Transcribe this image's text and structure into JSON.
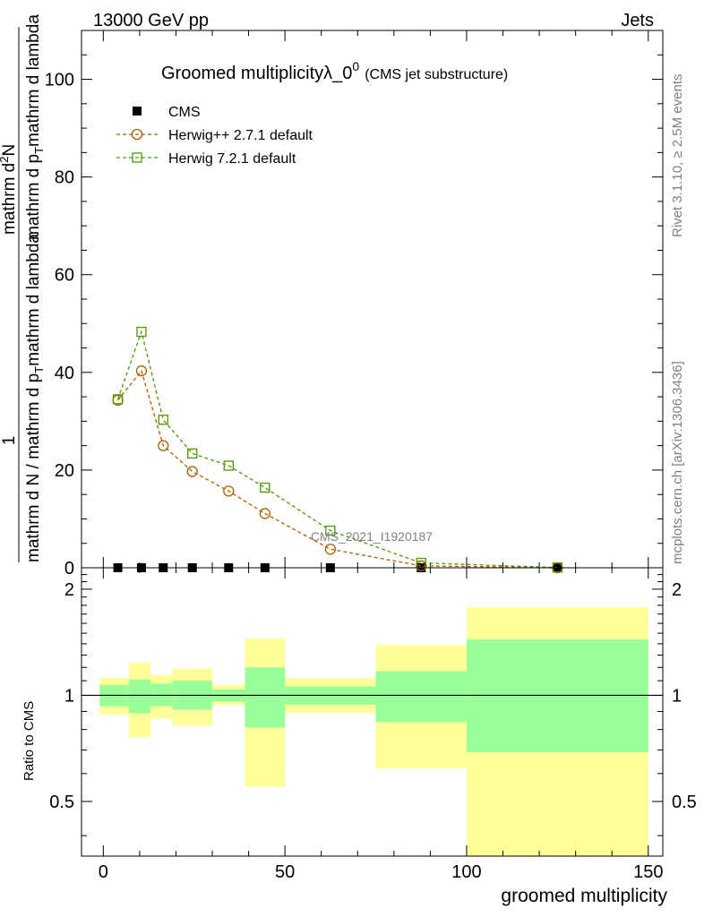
{
  "header": {
    "left": "13000 GeV pp",
    "right": "Jets"
  },
  "title": {
    "main": "Groomed multiplicityλ_0",
    "sup": "0",
    "sub": "(CMS jet substructure)"
  },
  "side_labels": {
    "rivet": "Rivet 3.1.10, ≥ 2.5M events",
    "mcplots": "mcplots.cern.ch [arXiv:1306.3436]"
  },
  "watermark": "CMS_2021_I1920187",
  "ylabel_main": {
    "numerator": "1",
    "denominator": "mathrm d N / mathrm d p",
    "denominator_sub": "T",
    "denominator_rest": "mathrm d lambda",
    "fraction_top": "mathrm d",
    "fraction_top_sup": "2",
    "fraction_top_rest": "N",
    "fraction_bottom": "mathrm d p",
    "fraction_bottom_sub": "T",
    "fraction_bottom_rest": "mathrm d lambda"
  },
  "ylabel_ratio": "Ratio to CMS",
  "xlabel": "groomed multiplicity",
  "chart_data": [
    {
      "type": "line",
      "panel": "main",
      "xlim": [
        -6,
        154
      ],
      "ylim": [
        0,
        110
      ],
      "y_ticks": [
        0,
        20,
        40,
        60,
        80,
        100
      ],
      "grid": false,
      "legend_position": "top-left",
      "series": [
        {
          "name": "CMS",
          "style": "markers",
          "marker": "filled-square",
          "color": "#000000",
          "x": [
            4,
            10.5,
            16.5,
            24.5,
            34.5,
            44.5,
            62.5,
            87.5,
            125
          ],
          "y": [
            0,
            0,
            0,
            0,
            0,
            0,
            0,
            0,
            0
          ]
        },
        {
          "name": "Herwig++ 2.7.1 default",
          "style": "dashed-line-markers",
          "marker": "open-circle",
          "color": "#b35900",
          "x": [
            4,
            10.5,
            16.5,
            24.5,
            34.5,
            44.5,
            62.5,
            87.5,
            125
          ],
          "y": [
            34.3,
            40.3,
            25.0,
            19.7,
            15.7,
            11.1,
            3.8,
            0.4,
            0.0
          ]
        },
        {
          "name": "Herwig 7.2.1 default",
          "style": "dashed-line-markers",
          "marker": "open-square",
          "color": "#4c9900",
          "x": [
            4,
            10.5,
            16.5,
            24.5,
            34.5,
            44.5,
            62.5,
            87.5,
            125
          ],
          "y": [
            34.5,
            48.3,
            30.3,
            23.4,
            20.9,
            16.4,
            7.6,
            1.0,
            0.05
          ]
        }
      ]
    },
    {
      "type": "area",
      "panel": "ratio",
      "xlim": [
        -6,
        154
      ],
      "ylim": [
        0.35,
        2.3
      ],
      "x_ticks": [
        0,
        50,
        100,
        150
      ],
      "y_ticks": [
        0.5,
        1,
        2
      ],
      "reference_line": 1,
      "bins": [
        {
          "x_low": -1,
          "x_high": 7,
          "inner": [
            0.93,
            1.07
          ],
          "outer": [
            0.88,
            1.12
          ]
        },
        {
          "x_low": 7,
          "x_high": 13,
          "inner": [
            0.89,
            1.11
          ],
          "outer": [
            0.76,
            1.24
          ]
        },
        {
          "x_low": 13,
          "x_high": 19,
          "inner": [
            0.93,
            1.08
          ],
          "outer": [
            0.86,
            1.14
          ]
        },
        {
          "x_low": 19,
          "x_high": 30,
          "inner": [
            0.91,
            1.1
          ],
          "outer": [
            0.82,
            1.19
          ]
        },
        {
          "x_low": 30,
          "x_high": 39,
          "inner": [
            0.96,
            1.04
          ],
          "outer": [
            0.94,
            1.07
          ]
        },
        {
          "x_low": 39,
          "x_high": 50,
          "inner": [
            0.81,
            1.2
          ],
          "outer": [
            0.55,
            1.45
          ]
        },
        {
          "x_low": 50,
          "x_high": 75,
          "inner": [
            0.94,
            1.06
          ],
          "outer": [
            0.89,
            1.12
          ]
        },
        {
          "x_low": 75,
          "x_high": 100,
          "inner": [
            0.84,
            1.17
          ],
          "outer": [
            0.62,
            1.39
          ]
        },
        {
          "x_low": 100,
          "x_high": 150,
          "inner": [
            0.69,
            1.44
          ],
          "outer": [
            0.35,
            1.78
          ]
        }
      ],
      "colors": {
        "inner": "#99ff99",
        "outer": "#ffff99"
      }
    }
  ]
}
